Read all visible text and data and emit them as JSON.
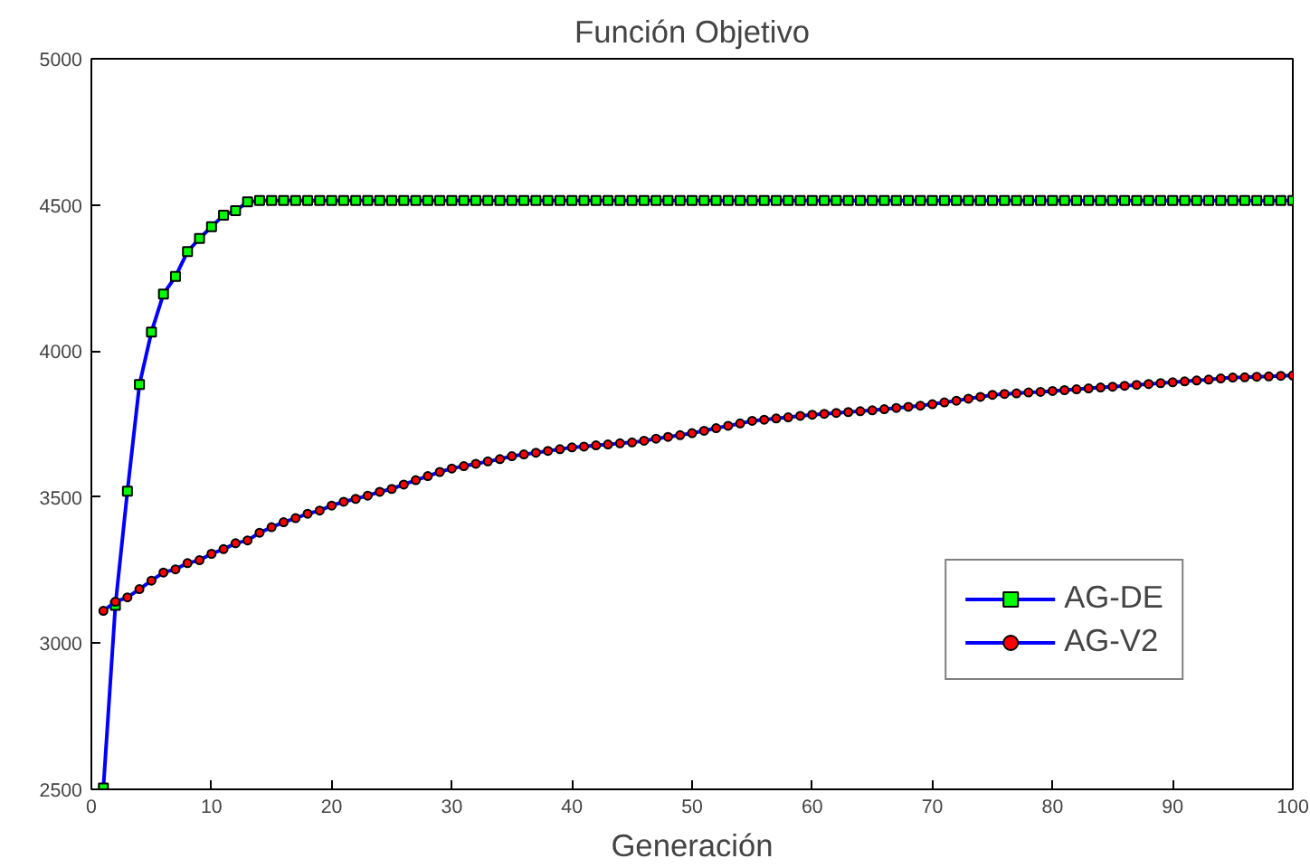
{
  "chart_data": {
    "type": "line",
    "title": "Función Objetivo",
    "xlabel": "Generación",
    "x": [
      1,
      2,
      3,
      4,
      5,
      6,
      7,
      8,
      9,
      10,
      11,
      12,
      13,
      14,
      15,
      16,
      17,
      18,
      19,
      20,
      21,
      22,
      23,
      24,
      25,
      26,
      27,
      28,
      29,
      30,
      31,
      32,
      33,
      34,
      35,
      36,
      37,
      38,
      39,
      40,
      41,
      42,
      43,
      44,
      45,
      46,
      47,
      48,
      49,
      50,
      51,
      52,
      53,
      54,
      55,
      56,
      57,
      58,
      59,
      60,
      61,
      62,
      63,
      64,
      65,
      66,
      67,
      68,
      69,
      70,
      71,
      72,
      73,
      74,
      75,
      76,
      77,
      78,
      79,
      80,
      81,
      82,
      83,
      84,
      85,
      86,
      87,
      88,
      89,
      90,
      91,
      92,
      93,
      94,
      95,
      96,
      97,
      98,
      99,
      100
    ],
    "series": [
      {
        "name": "AG-DE",
        "color": "#0000ff",
        "colors": [
          "#00ff00",
          "#00ff00",
          "#00ff00",
          "#00ff00",
          "#00ff00",
          "#00ff00",
          "#00ff00",
          "#00ff00",
          "#00ff00",
          "#00ff00",
          "#00ff00",
          "#00ff00",
          "#00ff00",
          "#00ff00",
          "#00ff00",
          "#00ff00",
          "#00ff00",
          "#00ff00",
          "#00ff00",
          "#00ff00",
          "#00ff00",
          "#00ff00",
          "#00ff00",
          "#00ff00",
          "#00ff00",
          "#00ff00",
          "#00ff00",
          "#00ff00",
          "#00ff00",
          "#00ff00",
          "#00ff00",
          "#00ff00",
          "#00ff00",
          "#00ff00",
          "#00ff00",
          "#00ff00",
          "#00ff00",
          "#00ff00",
          "#00ff00",
          "#00ff00",
          "#00ff00",
          "#00ff00",
          "#00ff00",
          "#00ff00",
          "#00ff00",
          "#00ff00",
          "#00ff00",
          "#00ff00",
          "#00ff00",
          "#00ff00",
          "#00ff00",
          "#00ff00",
          "#00ff00",
          "#00ff00",
          "#00ff00",
          "#00ff00",
          "#00ff00",
          "#00ff00",
          "#00ff00",
          "#00ff00",
          "#00ff00",
          "#00ff00",
          "#00ff00",
          "#00ff00",
          "#00ff00",
          "#00ff00",
          "#00ff00",
          "#00ff00",
          "#00ff00",
          "#00ff00",
          "#00ff00",
          "#00ff00",
          "#00ff00",
          "#00ff00",
          "#00ff00",
          "#00ff00",
          "#00ff00",
          "#00ff00",
          "#00ff00",
          "#00ff00",
          "#00ff00",
          "#00ff00",
          "#00ff00",
          "#00ff00",
          "#00ff00",
          "#00ff00",
          "#00ff00",
          "#00ff00",
          "#00ff00",
          "#00ff00",
          "#00ff00",
          "#00ff00",
          "#00ff00",
          "#00ff00",
          "#00ff00",
          "#00ff00",
          "#00ff00",
          "#00ff00",
          "#00ff00",
          "#00ff00"
        ],
        "marker": "square",
        "values": [
          2505,
          3130,
          3520,
          3885,
          4065,
          4195,
          4255,
          4340,
          4385,
          4425,
          4465,
          4480,
          4510,
          4515,
          4515,
          4515,
          4515,
          4515,
          4515,
          4515,
          4515,
          4515,
          4515,
          4515,
          4515,
          4515,
          4515,
          4515,
          4515,
          4515,
          4515,
          4515,
          4515,
          4515,
          4515,
          4515,
          4515,
          4515,
          4515,
          4515,
          4515,
          4515,
          4515,
          4515,
          4515,
          4515,
          4515,
          4515,
          4515,
          4515,
          4515,
          4515,
          4515,
          4515,
          4515,
          4515,
          4515,
          4515,
          4515,
          4515,
          4515,
          4515,
          4515,
          4515,
          4515,
          4515,
          4515,
          4515,
          4515,
          4515,
          4515,
          4515,
          4515,
          4515,
          4515,
          4515,
          4515,
          4515,
          4515,
          4515,
          4515,
          4515,
          4515,
          4515,
          4515,
          4515,
          4515,
          4515,
          4515,
          4515,
          4515,
          4515,
          4515,
          4515,
          4515,
          4515,
          4515,
          4515,
          4515,
          4515
        ]
      },
      {
        "name": "AG-V2",
        "color": "#0000ff",
        "colors": [
          "#ff0000",
          "#ff0000",
          "#ff0000",
          "#ff0000",
          "#ff0000",
          "#ff0000",
          "#ff0000",
          "#ff0000",
          "#ff0000",
          "#ff0000",
          "#ff0000",
          "#ff0000",
          "#ff0000",
          "#ff0000",
          "#ff0000",
          "#ff0000",
          "#ff0000",
          "#ff0000",
          "#ff0000",
          "#ff0000",
          "#ff0000",
          "#ff0000",
          "#ff0000",
          "#ff0000",
          "#ff0000",
          "#ff0000",
          "#ff0000",
          "#ff0000",
          "#ff0000",
          "#ff0000",
          "#ff0000",
          "#ff0000",
          "#ff0000",
          "#ff0000",
          "#ff0000",
          "#ff0000",
          "#ff0000",
          "#ff0000",
          "#ff0000",
          "#ff0000",
          "#ff0000",
          "#ff0000",
          "#ff0000",
          "#ff0000",
          "#ff0000",
          "#ff0000",
          "#ff0000",
          "#ff0000",
          "#ff0000",
          "#ff0000",
          "#ff0000",
          "#ff0000",
          "#ff0000",
          "#ff0000",
          "#ff0000",
          "#ff0000",
          "#ff0000",
          "#ff0000",
          "#ff0000",
          "#ff0000",
          "#ff0000",
          "#ff0000",
          "#ff0000",
          "#ff0000",
          "#ff0000",
          "#ff0000",
          "#ff0000",
          "#ff0000",
          "#ff0000",
          "#ff0000",
          "#ff0000",
          "#ff0000",
          "#ff0000",
          "#ff0000",
          "#ff0000",
          "#ff0000",
          "#ff0000",
          "#ff0000",
          "#ff0000",
          "#ff0000",
          "#ff0000",
          "#ff0000",
          "#ff0000",
          "#ff0000",
          "#ff0000",
          "#ff0000",
          "#ff0000",
          "#ff0000",
          "#ff0000",
          "#ff0000",
          "#ff0000",
          "#ff0000",
          "#ff0000",
          "#ff0000",
          "#ff0000",
          "#ff0000",
          "#ff0000",
          "#ff0000",
          "#ff0000",
          "#ff0000"
        ],
        "marker": "circle",
        "values": [
          3111,
          3142,
          3157,
          3185,
          3214,
          3242,
          3253,
          3274,
          3284,
          3306,
          3322,
          3342,
          3352,
          3378,
          3397,
          3414,
          3428,
          3443,
          3454,
          3471,
          3484,
          3494,
          3505,
          3518,
          3528,
          3543,
          3558,
          3572,
          3586,
          3598,
          3606,
          3614,
          3622,
          3630,
          3640,
          3646,
          3652,
          3658,
          3664,
          3670,
          3673,
          3677,
          3680,
          3684,
          3687,
          3693,
          3700,
          3706,
          3712,
          3719,
          3727,
          3736,
          3744,
          3752,
          3761,
          3765,
          3769,
          3773,
          3778,
          3782,
          3785,
          3788,
          3791,
          3794,
          3797,
          3801,
          3805,
          3809,
          3813,
          3818,
          3824,
          3830,
          3837,
          3843,
          3850,
          3853,
          3855,
          3858,
          3860,
          3863,
          3866,
          3869,
          3872,
          3875,
          3878,
          3881,
          3884,
          3887,
          3890,
          3893,
          3896,
          3899,
          3902,
          3906,
          3909,
          3910,
          3912,
          3913,
          3915,
          3916
        ]
      }
    ],
    "xlim": [
      0,
      100
    ],
    "xticks": [
      0,
      10,
      20,
      30,
      40,
      50,
      60,
      70,
      80,
      90,
      100
    ],
    "ylim": [
      2500,
      5000
    ],
    "yticks": [
      2500,
      3000,
      3500,
      4000,
      4500,
      5000
    ],
    "grid": false,
    "legend": "bottom right",
    "line_style": "solid"
  }
}
